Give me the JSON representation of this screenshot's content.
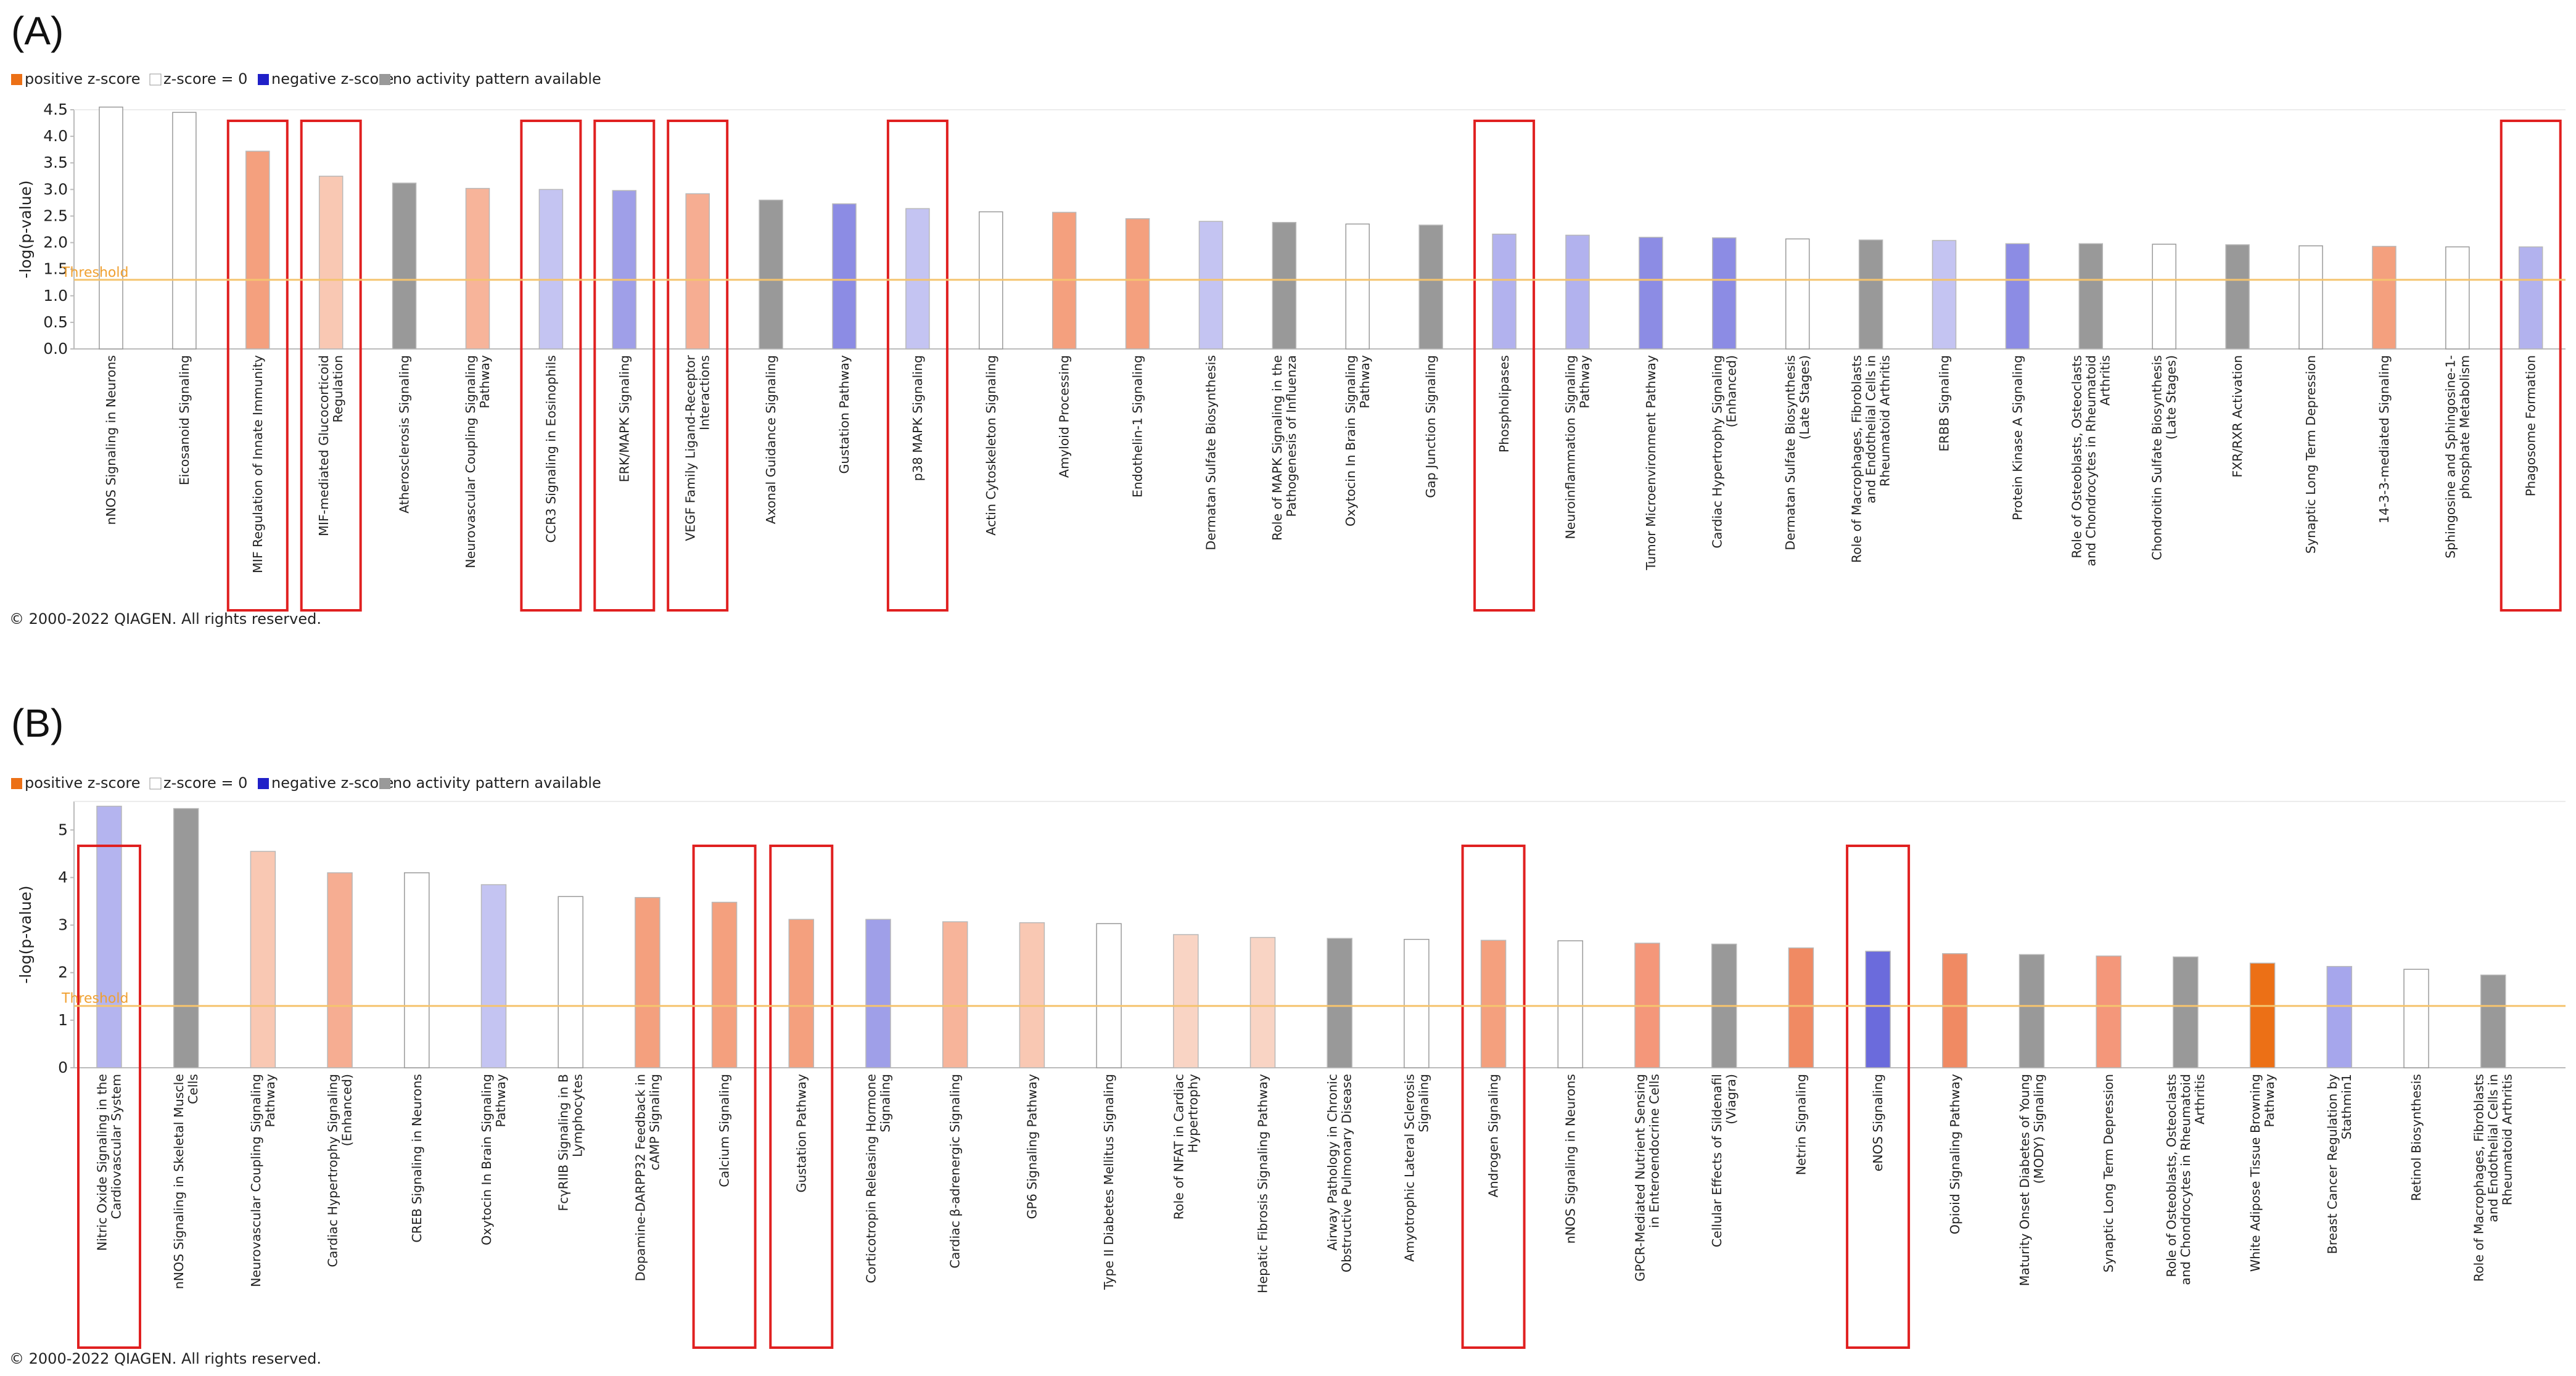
{
  "colors": {
    "threshold": "#f5c46e",
    "threshold_text": "#f0a030",
    "highlight_box": "#e02020",
    "axis": "#bbbbbb"
  },
  "legend": {
    "positive": "positive z-score",
    "zero": "z-score = 0",
    "negative": "negative z-score",
    "na": "no activity pattern available"
  },
  "copyright": "© 2000-2022 QIAGEN. All rights reserved.",
  "chart_data": [
    {
      "panel": "(A)",
      "type": "bar",
      "ylabel": "-log(p-value)",
      "threshold_label": "Threshold",
      "threshold": 1.3,
      "ylim": [
        0,
        4.5
      ],
      "yticks": [
        "0.0",
        "0.5",
        "1.0",
        "1.5",
        "2.0",
        "2.5",
        "3.0",
        "3.5",
        "4.0",
        "4.5"
      ],
      "bars": [
        {
          "label": [
            "nNOS Signaling in Neurons"
          ],
          "value": 4.55,
          "color": "#ffffff",
          "highlight": false
        },
        {
          "label": [
            "Eicosanoid Signaling"
          ],
          "value": 4.45,
          "color": "#ffffff",
          "highlight": false
        },
        {
          "label": [
            "MIF Regulation of Innate Immunity"
          ],
          "value": 3.72,
          "color": "#f4a07e",
          "highlight": true
        },
        {
          "label": [
            "MIF-mediated Glucocorticoid",
            "Regulation"
          ],
          "value": 3.25,
          "color": "#f9c8b3",
          "highlight": true
        },
        {
          "label": [
            "Atherosclerosis Signaling"
          ],
          "value": 3.12,
          "color": "#999999",
          "highlight": false
        },
        {
          "label": [
            "Neurovascular Coupling Signaling",
            "Pathway"
          ],
          "value": 3.02,
          "color": "#f7b49a",
          "highlight": false
        },
        {
          "label": [
            "CCR3 Signaling in Eosinophils"
          ],
          "value": 3.0,
          "color": "#c4c4f2",
          "highlight": true
        },
        {
          "label": [
            "ERK/MAPK Signaling"
          ],
          "value": 2.98,
          "color": "#9f9fe8",
          "highlight": true
        },
        {
          "label": [
            "VEGF Family Ligand-Receptor",
            "Interactions"
          ],
          "value": 2.92,
          "color": "#f6ad92",
          "highlight": true
        },
        {
          "label": [
            "Axonal Guidance Signaling"
          ],
          "value": 2.8,
          "color": "#999999",
          "highlight": false
        },
        {
          "label": [
            "Gustation Pathway"
          ],
          "value": 2.73,
          "color": "#8c8ce4",
          "highlight": false
        },
        {
          "label": [
            "p38 MAPK Signaling"
          ],
          "value": 2.64,
          "color": "#c4c4f2",
          "highlight": true
        },
        {
          "label": [
            "Actin Cytoskeleton Signaling"
          ],
          "value": 2.58,
          "color": "#ffffff",
          "highlight": false
        },
        {
          "label": [
            "Amyloid Processing"
          ],
          "value": 2.57,
          "color": "#f4a07e",
          "highlight": false
        },
        {
          "label": [
            "Endothelin-1 Signaling"
          ],
          "value": 2.45,
          "color": "#f4a07e",
          "highlight": false
        },
        {
          "label": [
            "Dermatan Sulfate Biosynthesis"
          ],
          "value": 2.4,
          "color": "#c4c4f2",
          "highlight": false
        },
        {
          "label": [
            "Role of MAPK Signaling in the",
            "Pathogenesis of Influenza"
          ],
          "value": 2.38,
          "color": "#999999",
          "highlight": false
        },
        {
          "label": [
            "Oxytocin In Brain Signaling",
            "Pathway"
          ],
          "value": 2.35,
          "color": "#ffffff",
          "highlight": false
        },
        {
          "label": [
            "Gap Junction Signaling"
          ],
          "value": 2.33,
          "color": "#999999",
          "highlight": false
        },
        {
          "label": [
            "Phospholipases"
          ],
          "value": 2.16,
          "color": "#b2b2ee",
          "highlight": true
        },
        {
          "label": [
            "Neuroinflammation Signaling",
            "Pathway"
          ],
          "value": 2.14,
          "color": "#b2b2ee",
          "highlight": false
        },
        {
          "label": [
            "Tumor Microenvironment Pathway"
          ],
          "value": 2.1,
          "color": "#8c8ce4",
          "highlight": false
        },
        {
          "label": [
            "Cardiac Hypertrophy Signaling",
            "(Enhanced)"
          ],
          "value": 2.09,
          "color": "#8c8ce4",
          "highlight": false
        },
        {
          "label": [
            "Dermatan Sulfate Biosynthesis",
            "(Late Stages)"
          ],
          "value": 2.07,
          "color": "#ffffff",
          "highlight": false
        },
        {
          "label": [
            "Role of Macrophages, Fibroblasts",
            "and Endothelial Cells in",
            "Rheumatoid Arthritis"
          ],
          "value": 2.05,
          "color": "#999999",
          "highlight": false
        },
        {
          "label": [
            "ERBB Signaling"
          ],
          "value": 2.04,
          "color": "#c4c4f2",
          "highlight": false
        },
        {
          "label": [
            "Protein Kinase A Signaling"
          ],
          "value": 1.98,
          "color": "#8c8ce4",
          "highlight": false
        },
        {
          "label": [
            "Role of Osteoblasts, Osteoclasts",
            "and Chondrocytes in Rheumatoid",
            "Arthritis"
          ],
          "value": 1.98,
          "color": "#999999",
          "highlight": false
        },
        {
          "label": [
            "Chondroitin Sulfate Biosynthesis",
            "(Late Stages)"
          ],
          "value": 1.97,
          "color": "#ffffff",
          "highlight": false
        },
        {
          "label": [
            "FXR/RXR Activation"
          ],
          "value": 1.96,
          "color": "#999999",
          "highlight": false
        },
        {
          "label": [
            "Synaptic Long Term Depression"
          ],
          "value": 1.94,
          "color": "#ffffff",
          "highlight": false
        },
        {
          "label": [
            "14-3-3-mediated Signaling"
          ],
          "value": 1.93,
          "color": "#f4a07e",
          "highlight": false
        },
        {
          "label": [
            "Sphingosine and Sphingosine-1-",
            "phosphate Metabolism"
          ],
          "value": 1.92,
          "color": "#ffffff",
          "highlight": false
        },
        {
          "label": [
            "Phagosome Formation"
          ],
          "value": 1.92,
          "color": "#b2b2ee",
          "highlight": true
        }
      ]
    },
    {
      "panel": "(B)",
      "type": "bar",
      "ylabel": "-log(p-value)",
      "threshold_label": "Threshold",
      "threshold": 1.3,
      "ylim": [
        0,
        5.6
      ],
      "yticks": [
        "0",
        "1",
        "2",
        "3",
        "4",
        "5"
      ],
      "bars": [
        {
          "label": [
            "Nitric Oxide Signaling in the",
            "Cardiovascular System"
          ],
          "value": 5.5,
          "color": "#b4b4ef",
          "highlight": true
        },
        {
          "label": [
            "nNOS Signaling in Skeletal Muscle",
            "Cells"
          ],
          "value": 5.45,
          "color": "#999999",
          "highlight": false
        },
        {
          "label": [
            "Neurovascular Coupling Signaling",
            "Pathway"
          ],
          "value": 4.55,
          "color": "#f9c8b3",
          "highlight": false
        },
        {
          "label": [
            "Cardiac Hypertrophy Signaling",
            "(Enhanced)"
          ],
          "value": 4.1,
          "color": "#f6ad92",
          "highlight": false
        },
        {
          "label": [
            "CREB Signaling in Neurons"
          ],
          "value": 4.1,
          "color": "#ffffff",
          "highlight": false
        },
        {
          "label": [
            "Oxytocin In Brain Signaling",
            "Pathway"
          ],
          "value": 3.85,
          "color": "#c4c4f2",
          "highlight": false
        },
        {
          "label": [
            "FcγRIIB Signaling in B",
            "Lymphocytes"
          ],
          "value": 3.6,
          "color": "#ffffff",
          "highlight": false
        },
        {
          "label": [
            "Dopamine-DARPP32 Feedback in",
            "cAMP Signaling"
          ],
          "value": 3.58,
          "color": "#f4a07e",
          "highlight": false
        },
        {
          "label": [
            "Calcium Signaling"
          ],
          "value": 3.48,
          "color": "#f4a07e",
          "highlight": true
        },
        {
          "label": [
            "Gustation Pathway"
          ],
          "value": 3.12,
          "color": "#f4a07e",
          "highlight": true
        },
        {
          "label": [
            "Corticotropin Releasing Hormone",
            "Signaling"
          ],
          "value": 3.12,
          "color": "#9f9fe8",
          "highlight": false
        },
        {
          "label": [
            "Cardiac β-adrenergic Signaling"
          ],
          "value": 3.07,
          "color": "#f7b49a",
          "highlight": false
        },
        {
          "label": [
            "GP6 Signaling Pathway"
          ],
          "value": 3.05,
          "color": "#f9c8b3",
          "highlight": false
        },
        {
          "label": [
            "Type II Diabetes Mellitus Signaling"
          ],
          "value": 3.03,
          "color": "#ffffff",
          "highlight": false
        },
        {
          "label": [
            "Role of NFAT in Cardiac",
            "Hypertrophy"
          ],
          "value": 2.8,
          "color": "#f9d4c4",
          "highlight": false
        },
        {
          "label": [
            "Hepatic Fibrosis Signaling Pathway"
          ],
          "value": 2.74,
          "color": "#f9d4c4",
          "highlight": false
        },
        {
          "label": [
            "Airway Pathology in Chronic",
            "Obstructive Pulmonary Disease"
          ],
          "value": 2.72,
          "color": "#999999",
          "highlight": false
        },
        {
          "label": [
            "Amyotrophic Lateral Sclerosis",
            "Signaling"
          ],
          "value": 2.7,
          "color": "#ffffff",
          "highlight": false
        },
        {
          "label": [
            "Androgen Signaling"
          ],
          "value": 2.68,
          "color": "#f4a07e",
          "highlight": true
        },
        {
          "label": [
            "nNOS Signaling in Neurons"
          ],
          "value": 2.67,
          "color": "#ffffff",
          "highlight": false
        },
        {
          "label": [
            "GPCR-Mediated Nutrient Sensing",
            "in Enteroendocrine Cells"
          ],
          "value": 2.62,
          "color": "#f4977a",
          "highlight": false
        },
        {
          "label": [
            "Cellular Effects of Sildenafil",
            "(Viagra)"
          ],
          "value": 2.6,
          "color": "#999999",
          "highlight": false
        },
        {
          "label": [
            "Netrin Signaling"
          ],
          "value": 2.52,
          "color": "#f08a63",
          "highlight": false
        },
        {
          "label": [
            "eNOS Signaling"
          ],
          "value": 2.45,
          "color": "#6b6bdc",
          "highlight": true
        },
        {
          "label": [
            "Opioid Signaling Pathway"
          ],
          "value": 2.4,
          "color": "#f08a63",
          "highlight": false
        },
        {
          "label": [
            "Maturity Onset Diabetes of Young",
            "(MODY) Signaling"
          ],
          "value": 2.38,
          "color": "#999999",
          "highlight": false
        },
        {
          "label": [
            "Synaptic Long Term Depression"
          ],
          "value": 2.35,
          "color": "#f4977a",
          "highlight": false
        },
        {
          "label": [
            "Role of Osteoblasts, Osteoclasts",
            "and Chondrocytes in Rheumatoid",
            "Arthritis"
          ],
          "value": 2.33,
          "color": "#999999",
          "highlight": false
        },
        {
          "label": [
            "White Adipose Tissue Browning",
            "Pathway"
          ],
          "value": 2.2,
          "color": "#ec7016",
          "highlight": false
        },
        {
          "label": [
            "Breast Cancer Regulation by",
            "Stathmin1"
          ],
          "value": 2.13,
          "color": "#a6a6ec",
          "highlight": false
        },
        {
          "label": [
            "Retinol Biosynthesis"
          ],
          "value": 2.07,
          "color": "#ffffff",
          "highlight": false
        },
        {
          "label": [
            "Role of Macrophages, Fibroblasts",
            "and Endothelial Cells in",
            "Rheumatoid Arthritis"
          ],
          "value": 1.95,
          "color": "#999999",
          "highlight": false
        }
      ]
    }
  ]
}
